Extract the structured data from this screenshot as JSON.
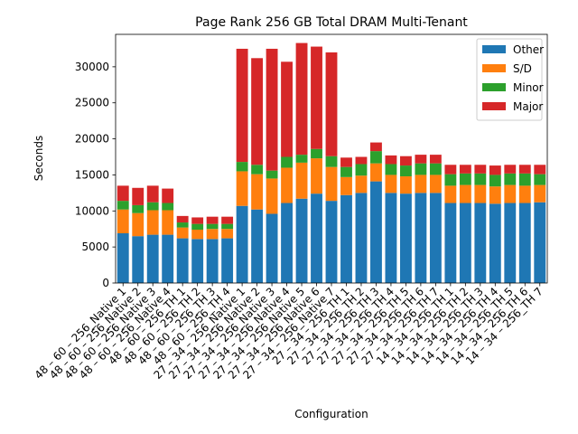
{
  "chart_data": {
    "type": "bar",
    "stacked": true,
    "title": "Page Rank 256 GB Total DRAM Multi-Tenant",
    "xlabel": "Configuration",
    "ylabel": "Seconds",
    "ylim": [
      0,
      34500
    ],
    "yticks": [
      0,
      5000,
      10000,
      15000,
      20000,
      25000,
      30000
    ],
    "legend_position": "top-right",
    "grid": false,
    "categories": [
      "48 – 60 – 256_Native 1",
      "48 – 60 – 256_Native 2",
      "48 – 60 – 256_Native 3",
      "48 – 60 – 256_Native 4",
      "48 – 60 – 256_TH 1",
      "48 – 60 – 256_TH 2",
      "48 – 60 – 256_TH 3",
      "48 – 60 – 256_TH 4",
      "27 – 34 – 256_Native 1",
      "27 – 34 – 256_Native 2",
      "27 – 34 – 256_Native 3",
      "27 – 34 – 256_Native 4",
      "27 – 34 – 256_Native 5",
      "27 – 34 – 256_Native 6",
      "27 – 34 – 256_Native 7",
      "27 – 34 – 256_TH 1",
      "27 – 34 – 256_TH 2",
      "27 – 34 – 256_TH 3",
      "27 – 34 – 256_TH 4",
      "27 – 34 – 256_TH 5",
      "27 – 34 – 256_TH 6",
      "27 – 34 – 256_TH 7",
      "14 – 34 – 256_TH 1",
      "14 – 34 – 256_TH 2",
      "14 – 34 – 256_TH 3",
      "14 – 34 – 256_TH 4",
      "14 – 34 – 256_TH 5",
      "14 – 34 – 256_TH 6",
      "14 – 34 – 256_TH 7"
    ],
    "series": [
      {
        "name": "Other",
        "color": "#1f77b4",
        "values": [
          6900,
          6500,
          6700,
          6700,
          6200,
          6100,
          6100,
          6200,
          10700,
          10200,
          9600,
          11100,
          11700,
          12400,
          11400,
          12200,
          12500,
          14100,
          12500,
          12400,
          12500,
          12500,
          11100,
          11100,
          11100,
          11000,
          11100,
          11100,
          11200
        ]
      },
      {
        "name": "S/D",
        "color": "#ff7f0e",
        "values": [
          3300,
          3200,
          3400,
          3400,
          1500,
          1300,
          1400,
          1300,
          4800,
          4900,
          4900,
          4900,
          5000,
          4900,
          4700,
          2500,
          2400,
          2500,
          2500,
          2400,
          2500,
          2500,
          2400,
          2500,
          2500,
          2400,
          2500,
          2400,
          2400
        ]
      },
      {
        "name": "Minor",
        "color": "#2ca02c",
        "values": [
          1200,
          1100,
          1100,
          1000,
          700,
          800,
          700,
          700,
          1300,
          1300,
          1100,
          1500,
          1100,
          1300,
          1500,
          1400,
          1600,
          1700,
          1500,
          1500,
          1600,
          1600,
          1600,
          1600,
          1600,
          1600,
          1600,
          1700,
          1500
        ]
      },
      {
        "name": "Major",
        "color": "#d62728",
        "values": [
          2100,
          2400,
          2300,
          2000,
          900,
          900,
          1000,
          1000,
          15700,
          14800,
          16900,
          13200,
          15500,
          14200,
          14400,
          1300,
          1000,
          1200,
          1200,
          1300,
          1200,
          1200,
          1300,
          1200,
          1200,
          1300,
          1200,
          1200,
          1300
        ]
      }
    ]
  }
}
